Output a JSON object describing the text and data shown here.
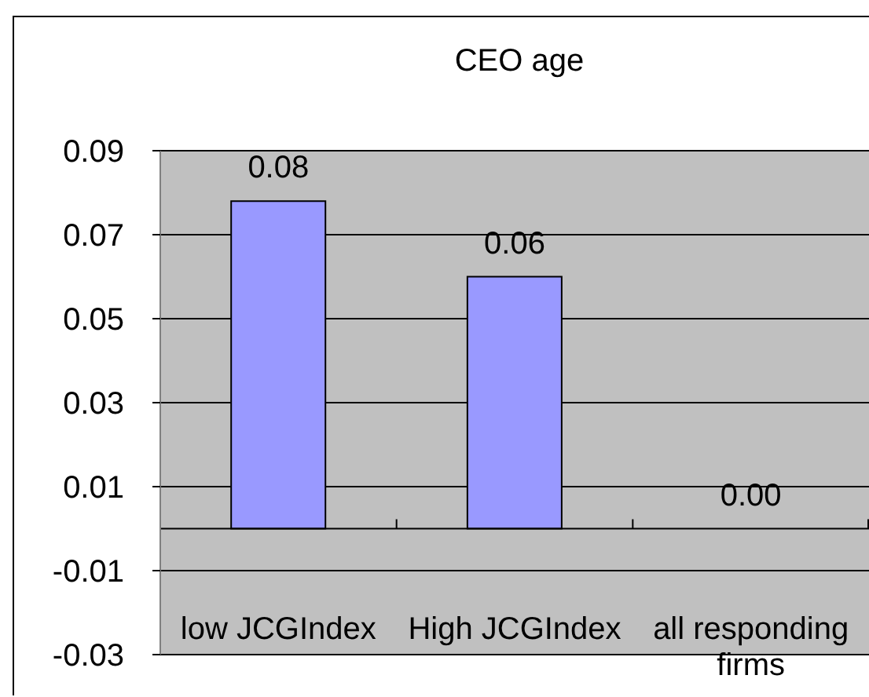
{
  "chart_data": {
    "type": "bar",
    "title": "CEO age",
    "categories": [
      "low JCGIndex",
      "High JCGIndex",
      "all responding firms"
    ],
    "values": [
      0.078,
      0.06,
      0
    ],
    "value_labels": [
      "0.08",
      "0.06",
      "0.00"
    ],
    "color": "#9999ff",
    "ylim": [
      -0.03,
      0.09
    ],
    "yticks": [
      -0.03,
      -0.01,
      0.01,
      0.03,
      0.05,
      0.07,
      0.09
    ],
    "grid": "y"
  }
}
